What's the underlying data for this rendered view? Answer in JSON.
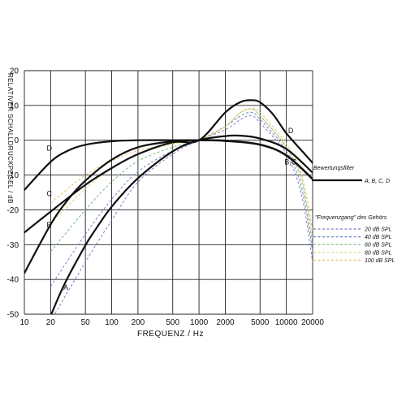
{
  "chart_data": {
    "type": "line",
    "xlabel": "FREQUENZ / Hz",
    "ylabel": "RELATIVER SCHALLDRUCKPEGEL / dB",
    "x_scale": "log",
    "xlim": [
      10,
      20000
    ],
    "ylim": [
      -50,
      20
    ],
    "x_ticks": [
      10,
      20,
      50,
      100,
      200,
      500,
      1000,
      2000,
      5000,
      10000,
      20000
    ],
    "x_tick_labels": [
      "10",
      "20",
      "50",
      "100",
      "200",
      "500",
      "1000",
      "2000",
      "5000",
      "10000",
      "20000"
    ],
    "y_ticks": [
      20,
      10,
      0,
      -10,
      -20,
      -30,
      -40,
      -50
    ],
    "y_tick_labels": [
      "20",
      "10",
      "0",
      "-10",
      "-20",
      "-30",
      "-40",
      "-50"
    ],
    "grid": true,
    "legend": {
      "placement": "right",
      "weighting_title": "Bewertungsfilter",
      "weighting_entry": "A, B, C, D",
      "ear_title": "\"Frequenzgang\" des Gehörs",
      "ear_entries": [
        {
          "label": "20 dB SPL",
          "color": "#8878c8"
        },
        {
          "label": "40 dB SPL",
          "color": "#6888c8"
        },
        {
          "label": "60 dB SPL",
          "color": "#70b878"
        },
        {
          "label": "80 dB SPL",
          "color": "#d8d878"
        },
        {
          "label": "100 dB SPL",
          "color": "#e8c070"
        }
      ]
    },
    "curve_labels": [
      {
        "text": "A",
        "x": 28,
        "y": -43
      },
      {
        "text": "B",
        "x": 18,
        "y": -25
      },
      {
        "text": "C",
        "x": 18,
        "y": -16
      },
      {
        "text": "D",
        "x": 18,
        "y": -3
      },
      {
        "text": "B,C",
        "x": 9500,
        "y": -7
      },
      {
        "text": "D",
        "x": 10500,
        "y": 2
      }
    ],
    "series": [
      {
        "name": "A",
        "x": [
          20,
          25,
          31.5,
          50,
          63,
          100,
          200,
          500,
          1000,
          2000,
          3000,
          5000,
          10000,
          20000
        ],
        "values": [
          -50.5,
          -44.7,
          -39.4,
          -30.2,
          -26.2,
          -19.1,
          -10.9,
          -3.2,
          0,
          1.2,
          1.3,
          0.5,
          -2.5,
          -9.3
        ]
      },
      {
        "name": "B",
        "x": [
          10,
          20,
          31.5,
          50,
          100,
          200,
          500,
          1000,
          2000,
          5000,
          10000,
          20000
        ],
        "values": [
          -38.2,
          -24.2,
          -17.1,
          -11.6,
          -5.6,
          -2.0,
          -0.3,
          0,
          -0.1,
          -1.2,
          -4.3,
          -11.1
        ]
      },
      {
        "name": "C",
        "x": [
          10,
          20,
          31.5,
          50,
          100,
          200,
          500,
          1000,
          2000,
          5000,
          10000,
          20000
        ],
        "values": [
          -14.3,
          -6.2,
          -3.0,
          -1.3,
          -0.3,
          0,
          0,
          0,
          -0.2,
          -1.3,
          -4.4,
          -11.2
        ]
      },
      {
        "name": "D",
        "x": [
          10,
          20,
          50,
          100,
          200,
          500,
          1000,
          2000,
          3000,
          4000,
          5000,
          7000,
          10000,
          15000,
          20000
        ],
        "values": [
          -26.5,
          -20.5,
          -12.8,
          -8.0,
          -4.0,
          -0.6,
          0,
          8.0,
          11.0,
          11.5,
          10.9,
          7.5,
          2.0,
          -3.0,
          -6.5
        ]
      },
      {
        "name": "20 dB SPL",
        "x": [
          20,
          50,
          100,
          200,
          500,
          1000,
          2000,
          3000,
          4000,
          5000,
          10000,
          15000,
          20000
        ],
        "values": [
          -52,
          -35,
          -23,
          -12,
          -4,
          0,
          3,
          6,
          7,
          5,
          -4,
          -16,
          -35
        ]
      },
      {
        "name": "40 dB SPL",
        "x": [
          20,
          50,
          100,
          200,
          500,
          1000,
          2000,
          3000,
          4000,
          5000,
          10000,
          15000,
          20000
        ],
        "values": [
          -42,
          -27,
          -17,
          -9,
          -3,
          0,
          4,
          7,
          8,
          6,
          -3,
          -14,
          -32
        ]
      },
      {
        "name": "60 dB SPL",
        "x": [
          20,
          50,
          100,
          200,
          500,
          1000,
          2000,
          3000,
          4000,
          5000,
          10000,
          15000,
          20000
        ],
        "values": [
          -32,
          -20,
          -12,
          -6,
          -2,
          0,
          4,
          8,
          9,
          7,
          -2,
          -12,
          -30
        ]
      },
      {
        "name": "80 dB SPL",
        "x": [
          20,
          50,
          100,
          200,
          500,
          1000,
          2000,
          3000,
          4000,
          5000,
          10000,
          15000,
          20000
        ],
        "values": [
          -24,
          -14,
          -8,
          -4,
          -1,
          0,
          4,
          8,
          9,
          7,
          -2,
          -11,
          -28
        ]
      },
      {
        "name": "100 dB SPL",
        "x": [
          20,
          50,
          100,
          200,
          500,
          1000,
          2000,
          3000,
          4000,
          5000,
          10000,
          15000,
          20000
        ],
        "values": [
          -18,
          -10,
          -6,
          -3,
          -1,
          0,
          4,
          8,
          9,
          8,
          -1,
          -10,
          -26
        ]
      }
    ]
  }
}
